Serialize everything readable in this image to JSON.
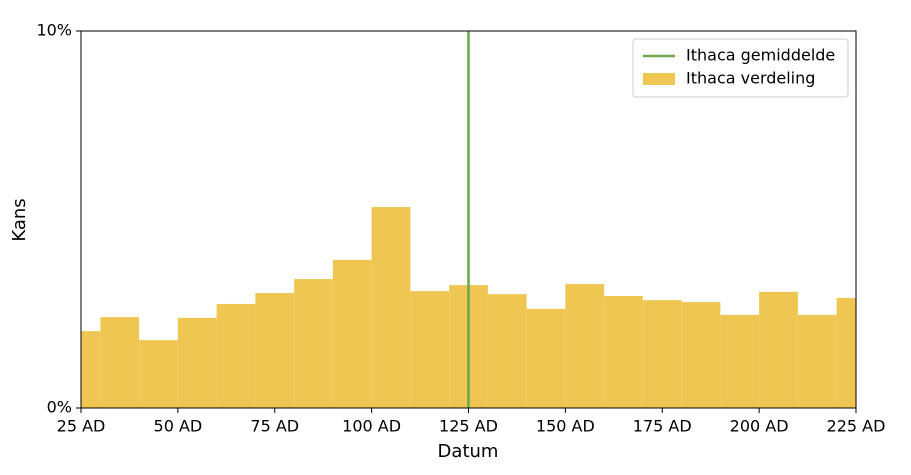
{
  "chart_data": {
    "type": "histogram",
    "x_label": "Datum",
    "y_label": "Kans",
    "bins": [
      25,
      30,
      40,
      50,
      60,
      70,
      80,
      90,
      100,
      110,
      120,
      130,
      140,
      150,
      160,
      170,
      180,
      190,
      200,
      210,
      220,
      225
    ],
    "series": [
      {
        "name": "Ithaca verdeling",
        "color": "#efc651",
        "values": [
          2.04,
          2.41,
          1.8,
          2.39,
          2.76,
          3.05,
          3.42,
          3.93,
          5.33,
          3.1,
          3.26,
          3.02,
          2.63,
          3.29,
          2.97,
          2.86,
          2.81,
          2.47,
          3.08,
          2.47,
          2.92
        ]
      }
    ],
    "mean_line": {
      "name": "Ithaca gemiddelde",
      "color": "#6aa84f",
      "x": 125
    },
    "xlim": [
      25,
      225
    ],
    "ylim": [
      0,
      10
    ],
    "xticks": [
      {
        "value": 25,
        "label": "25 AD"
      },
      {
        "value": 50,
        "label": "50 AD"
      },
      {
        "value": 75,
        "label": "75 AD"
      },
      {
        "value": 100,
        "label": "100 AD"
      },
      {
        "value": 125,
        "label": "125 AD"
      },
      {
        "value": 150,
        "label": "150 AD"
      },
      {
        "value": 175,
        "label": "175 AD"
      },
      {
        "value": 200,
        "label": "200 AD"
      },
      {
        "value": 225,
        "label": "225 AD"
      }
    ],
    "yticks": [
      {
        "value": 0,
        "label": "0%"
      },
      {
        "value": 10,
        "label": "10%"
      }
    ],
    "legend": "upper right"
  }
}
